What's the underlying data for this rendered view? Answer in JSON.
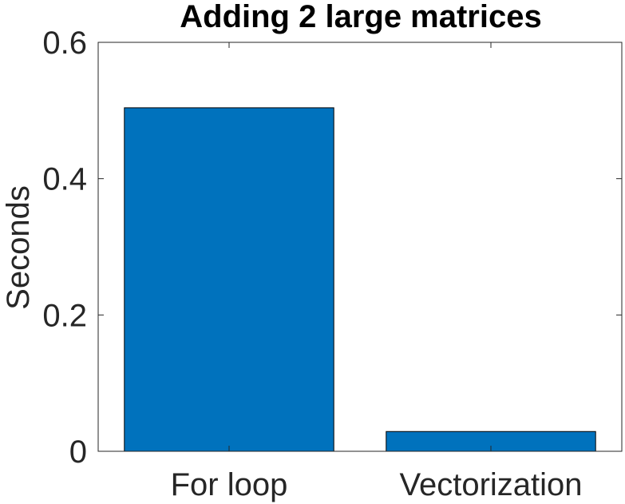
{
  "chart_data": {
    "type": "bar",
    "title": "Adding 2 large matrices",
    "xlabel": "",
    "ylabel": "Seconds",
    "categories": [
      "For loop",
      "Vectorization"
    ],
    "values": [
      0.504,
      0.029
    ],
    "ylim": [
      0,
      0.6
    ],
    "yticks": [
      0,
      0.2,
      0.4,
      0.6
    ],
    "ytick_labels": [
      "0",
      "0.2",
      "0.4",
      "0.6"
    ],
    "grid": false,
    "box": true,
    "bar_color": "#0072BD",
    "bar_edge_color": "#000000"
  }
}
